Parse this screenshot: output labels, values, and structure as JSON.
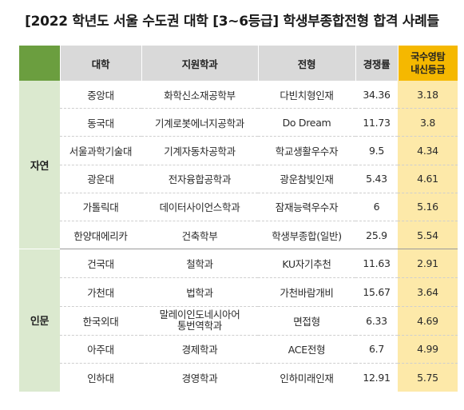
{
  "title": "[2022 학년도 서울 수도권 대학 [3~6등급] 학생부종합전형 합격 사례들",
  "headers": {
    "university": "대학",
    "department": "지원학과",
    "admission_type": "전형",
    "competition_rate": "경쟁률",
    "grade_line1": "국수영탐",
    "grade_line2": "내신등급"
  },
  "sections": [
    {
      "category": "자연",
      "rows": [
        {
          "university": "중앙대",
          "department": "화학신소재공학부",
          "admission_type": "다빈치형인재",
          "competition_rate": "34.36",
          "grade": "3.18"
        },
        {
          "university": "동국대",
          "department": "기계로봇에너지공학과",
          "admission_type": "Do Dream",
          "competition_rate": "11.73",
          "grade": "3.8"
        },
        {
          "university": "서울과학기술대",
          "department": "기계자동차공학과",
          "admission_type": "학교생활우수자",
          "competition_rate": "9.5",
          "grade": "4.34"
        },
        {
          "university": "광운대",
          "department": "전자융합공학과",
          "admission_type": "광운참빛인재",
          "competition_rate": "5.43",
          "grade": "4.61"
        },
        {
          "university": "가톨릭대",
          "department": "데이터사이언스학과",
          "admission_type": "잠재능력우수자",
          "competition_rate": "6",
          "grade": "5.16"
        },
        {
          "university": "한양대에리카",
          "department": "건축학부",
          "admission_type": "학생부종합(일반)",
          "competition_rate": "25.9",
          "grade": "5.54"
        }
      ]
    },
    {
      "category": "인문",
      "rows": [
        {
          "university": "건국대",
          "department": "철학과",
          "admission_type": "KU자기추천",
          "competition_rate": "11.63",
          "grade": "2.91"
        },
        {
          "university": "가천대",
          "department": "법학과",
          "admission_type": "가천바람개비",
          "competition_rate": "15.67",
          "grade": "3.64"
        },
        {
          "university": "한국외대",
          "department_line1": "말레이인도네시아어",
          "department_line2": "통번역학과",
          "admission_type": "면접형",
          "competition_rate": "6.33",
          "grade": "4.69"
        },
        {
          "university": "아주대",
          "department": "경제학과",
          "admission_type": "ACE전형",
          "competition_rate": "6.7",
          "grade": "4.99"
        },
        {
          "university": "인하대",
          "department": "경영학과",
          "admission_type": "인하미래인재",
          "competition_rate": "12.91",
          "grade": "5.75"
        }
      ]
    }
  ],
  "colors": {
    "header_bg": "#d9d9d9",
    "corner_green": "#6b9e3f",
    "category_bg": "#dbe9cf",
    "grade_header": "#f5b800",
    "grade_cell": "#fde9a9"
  }
}
